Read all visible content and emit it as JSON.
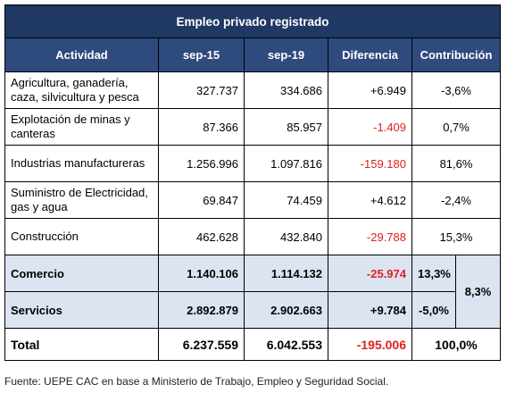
{
  "title": "Empleo privado registrado",
  "header": [
    "Actividad",
    "sep-15",
    "sep-19",
    "Diferencia",
    "Contribución"
  ],
  "rows": [
    [
      "Agricultura, ganadería, caza, silvicultura y pesca",
      "327.737",
      "334.686",
      "+6.949",
      "-3,6%"
    ],
    [
      "Explotación de minas y canteras",
      "87.366",
      "85.957",
      "-1.409",
      "0,7%"
    ],
    [
      "Industrias manufactureras",
      "1.256.996",
      "1.097.816",
      "-159.180",
      "81,6%"
    ],
    [
      "Suministro de Electricidad, gas y agua",
      "69.847",
      "74.459",
      "+4.612",
      "-2,4%"
    ],
    [
      "Construcción",
      "462.628",
      "432.840",
      "-29.788",
      "15,3%"
    ]
  ],
  "group": {
    "rows": [
      [
        "Comercio",
        "1.140.106",
        "1.114.132",
        "-25.974",
        "13,3%"
      ],
      [
        "Servicios",
        "2.892.879",
        "2.902.663",
        "+9.784",
        "-5,0%"
      ]
    ],
    "combined": "8,3%"
  },
  "total": [
    "Total",
    "6.237.559",
    "6.042.553",
    "-195.006",
    "100,0%"
  ],
  "footnote": "Fuente: UEPE CAC en base a Ministerio de Trabajo, Empleo y Seguridad Social."
}
